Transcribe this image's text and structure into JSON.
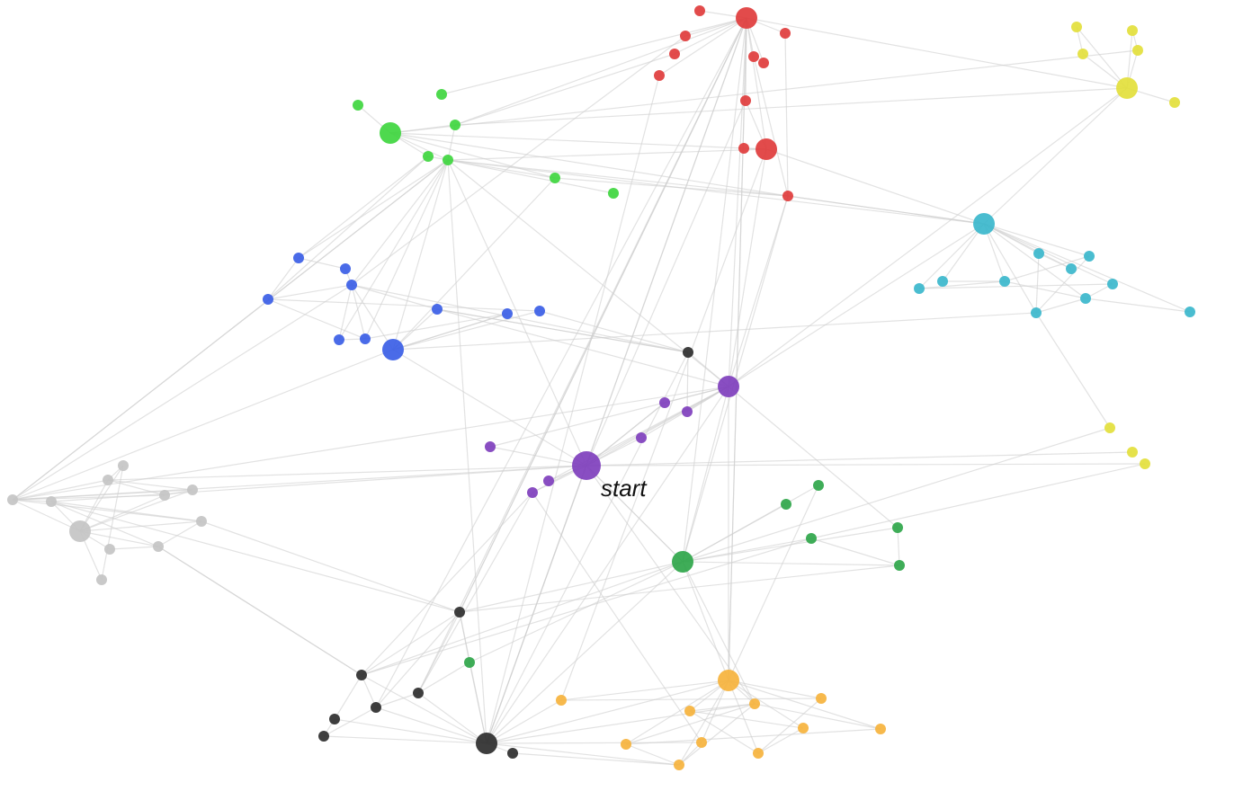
{
  "start_label": "start",
  "colors": {
    "red": "#e03c3c",
    "green": "#3fd63f",
    "blue": "#3b5ee6",
    "teal": "#3bb7cc",
    "yellow": "#e3df3c",
    "purple": "#7f3fbd",
    "darkgreen": "#2fa64a",
    "orange": "#f6b33d",
    "black": "#2e2e2e",
    "gray": "#c4c4c4",
    "edge": "#cfcfcf"
  },
  "nodes": [
    {
      "id": "r1",
      "group": "red",
      "size": "hub"
    },
    {
      "id": "r2",
      "group": "red",
      "size": "small"
    },
    {
      "id": "r3",
      "group": "red",
      "size": "small"
    },
    {
      "id": "r4",
      "group": "red",
      "size": "small"
    },
    {
      "id": "r5",
      "group": "red",
      "size": "small"
    },
    {
      "id": "r6",
      "group": "red",
      "size": "small"
    },
    {
      "id": "r7",
      "group": "red",
      "size": "small"
    },
    {
      "id": "r8",
      "group": "red",
      "size": "small"
    },
    {
      "id": "r9",
      "group": "red",
      "size": "small"
    },
    {
      "id": "r10",
      "group": "red",
      "size": "hub"
    },
    {
      "id": "r11",
      "group": "red",
      "size": "small"
    },
    {
      "id": "r12",
      "group": "red",
      "size": "small"
    },
    {
      "id": "y1",
      "group": "yellow",
      "size": "small"
    },
    {
      "id": "y2",
      "group": "yellow",
      "size": "small"
    },
    {
      "id": "y3",
      "group": "yellow",
      "size": "small"
    },
    {
      "id": "y4",
      "group": "yellow",
      "size": "small"
    },
    {
      "id": "y5",
      "group": "yellow",
      "size": "hub"
    },
    {
      "id": "y6",
      "group": "yellow",
      "size": "small"
    },
    {
      "id": "y7",
      "group": "yellow",
      "size": "small"
    },
    {
      "id": "y8",
      "group": "yellow",
      "size": "small"
    },
    {
      "id": "y9",
      "group": "yellow",
      "size": "small"
    },
    {
      "id": "g1",
      "group": "green",
      "size": "small"
    },
    {
      "id": "g2",
      "group": "green",
      "size": "small"
    },
    {
      "id": "g3",
      "group": "green",
      "size": "hub"
    },
    {
      "id": "g4",
      "group": "green",
      "size": "small"
    },
    {
      "id": "g5",
      "group": "green",
      "size": "small"
    },
    {
      "id": "g6",
      "group": "green",
      "size": "small"
    },
    {
      "id": "g7",
      "group": "green",
      "size": "small"
    },
    {
      "id": "g8",
      "group": "green",
      "size": "small"
    },
    {
      "id": "b1",
      "group": "blue",
      "size": "small"
    },
    {
      "id": "b2",
      "group": "blue",
      "size": "small"
    },
    {
      "id": "b3",
      "group": "blue",
      "size": "small"
    },
    {
      "id": "b4",
      "group": "blue",
      "size": "small"
    },
    {
      "id": "b5",
      "group": "blue",
      "size": "small"
    },
    {
      "id": "b6",
      "group": "blue",
      "size": "small"
    },
    {
      "id": "b7",
      "group": "blue",
      "size": "small"
    },
    {
      "id": "b8",
      "group": "blue",
      "size": "small"
    },
    {
      "id": "b9",
      "group": "blue",
      "size": "small"
    },
    {
      "id": "b10",
      "group": "blue",
      "size": "hub"
    },
    {
      "id": "t1",
      "group": "teal",
      "size": "hub"
    },
    {
      "id": "t2",
      "group": "teal",
      "size": "small"
    },
    {
      "id": "t3",
      "group": "teal",
      "size": "small"
    },
    {
      "id": "t4",
      "group": "teal",
      "size": "small"
    },
    {
      "id": "t5",
      "group": "teal",
      "size": "small"
    },
    {
      "id": "t6",
      "group": "teal",
      "size": "small"
    },
    {
      "id": "t7",
      "group": "teal",
      "size": "small"
    },
    {
      "id": "t8",
      "group": "teal",
      "size": "small"
    },
    {
      "id": "t9",
      "group": "teal",
      "size": "small"
    },
    {
      "id": "t10",
      "group": "teal",
      "size": "small"
    },
    {
      "id": "t11",
      "group": "teal",
      "size": "small"
    },
    {
      "id": "k1",
      "group": "black",
      "size": "small"
    },
    {
      "id": "k2",
      "group": "black",
      "size": "small"
    },
    {
      "id": "k3",
      "group": "black",
      "size": "small"
    },
    {
      "id": "k4",
      "group": "black",
      "size": "small"
    },
    {
      "id": "k5",
      "group": "black",
      "size": "small"
    },
    {
      "id": "k6",
      "group": "black",
      "size": "small"
    },
    {
      "id": "k7",
      "group": "black",
      "size": "small"
    },
    {
      "id": "k8",
      "group": "black",
      "size": "hub"
    },
    {
      "id": "k9",
      "group": "black",
      "size": "small"
    },
    {
      "id": "p1",
      "group": "purple",
      "size": "hub"
    },
    {
      "id": "p2",
      "group": "purple",
      "size": "small"
    },
    {
      "id": "p3",
      "group": "purple",
      "size": "small"
    },
    {
      "id": "p4",
      "group": "purple",
      "size": "small"
    },
    {
      "id": "p5",
      "group": "purple",
      "size": "small"
    },
    {
      "id": "p6",
      "group": "purple",
      "size": "start"
    },
    {
      "id": "p7",
      "group": "purple",
      "size": "small"
    },
    {
      "id": "p8",
      "group": "purple",
      "size": "small"
    },
    {
      "id": "dg1",
      "group": "darkgreen",
      "size": "small"
    },
    {
      "id": "dg2",
      "group": "darkgreen",
      "size": "small"
    },
    {
      "id": "dg3",
      "group": "darkgreen",
      "size": "small"
    },
    {
      "id": "dg4",
      "group": "darkgreen",
      "size": "small"
    },
    {
      "id": "dg5",
      "group": "darkgreen",
      "size": "small"
    },
    {
      "id": "dg6",
      "group": "darkgreen",
      "size": "hub"
    },
    {
      "id": "dg7",
      "group": "darkgreen",
      "size": "small"
    },
    {
      "id": "o1",
      "group": "orange",
      "size": "hub"
    },
    {
      "id": "o2",
      "group": "orange",
      "size": "small"
    },
    {
      "id": "o3",
      "group": "orange",
      "size": "small"
    },
    {
      "id": "o4",
      "group": "orange",
      "size": "small"
    },
    {
      "id": "o5",
      "group": "orange",
      "size": "small"
    },
    {
      "id": "o6",
      "group": "orange",
      "size": "small"
    },
    {
      "id": "o7",
      "group": "orange",
      "size": "small"
    },
    {
      "id": "o8",
      "group": "orange",
      "size": "small"
    },
    {
      "id": "o9",
      "group": "orange",
      "size": "small"
    },
    {
      "id": "o10",
      "group": "orange",
      "size": "small"
    },
    {
      "id": "o11",
      "group": "orange",
      "size": "small"
    },
    {
      "id": "s1",
      "group": "gray",
      "size": "small"
    },
    {
      "id": "s2",
      "group": "gray",
      "size": "small"
    },
    {
      "id": "s3",
      "group": "gray",
      "size": "small"
    },
    {
      "id": "s4",
      "group": "gray",
      "size": "small"
    },
    {
      "id": "s5",
      "group": "gray",
      "size": "small"
    },
    {
      "id": "s6",
      "group": "gray",
      "size": "small"
    },
    {
      "id": "s7",
      "group": "gray",
      "size": "hub"
    },
    {
      "id": "s8",
      "group": "gray",
      "size": "small"
    },
    {
      "id": "s9",
      "group": "gray",
      "size": "small"
    },
    {
      "id": "s10",
      "group": "gray",
      "size": "small"
    },
    {
      "id": "s11",
      "group": "gray",
      "size": "small"
    }
  ],
  "edges": [
    [
      "r1",
      "r2"
    ],
    [
      "r1",
      "r3"
    ],
    [
      "r1",
      "r4"
    ],
    [
      "r1",
      "r5"
    ],
    [
      "r1",
      "r6"
    ],
    [
      "r1",
      "r7"
    ],
    [
      "r1",
      "r8"
    ],
    [
      "r1",
      "r9"
    ],
    [
      "r1",
      "r10"
    ],
    [
      "r1",
      "g4"
    ],
    [
      "r1",
      "g2"
    ],
    [
      "r1",
      "y5"
    ],
    [
      "r1",
      "k8"
    ],
    [
      "r1",
      "k1"
    ],
    [
      "r1",
      "dg6"
    ],
    [
      "r1",
      "o1"
    ],
    [
      "r1",
      "p1"
    ],
    [
      "r10",
      "r11"
    ],
    [
      "r10",
      "r9"
    ],
    [
      "r10",
      "g3"
    ],
    [
      "r10",
      "g5"
    ],
    [
      "r10",
      "p1"
    ],
    [
      "r10",
      "t1"
    ],
    [
      "r10",
      "o2"
    ],
    [
      "r12",
      "t1"
    ],
    [
      "r12",
      "g5"
    ],
    [
      "r12",
      "p1"
    ],
    [
      "r12",
      "r7"
    ],
    [
      "r12",
      "g3"
    ],
    [
      "r12",
      "g6"
    ],
    [
      "r4",
      "g4"
    ],
    [
      "r5",
      "r12"
    ],
    [
      "r3",
      "b3"
    ],
    [
      "r6",
      "k8"
    ],
    [
      "r9",
      "p6"
    ],
    [
      "y5",
      "y1"
    ],
    [
      "y5",
      "y2"
    ],
    [
      "y5",
      "y3"
    ],
    [
      "y5",
      "y4"
    ],
    [
      "y5",
      "y6"
    ],
    [
      "y5",
      "t1"
    ],
    [
      "y5",
      "p1"
    ],
    [
      "y5",
      "g4"
    ],
    [
      "y1",
      "y3"
    ],
    [
      "y2",
      "y4"
    ],
    [
      "y4",
      "g3"
    ],
    [
      "t1",
      "t2"
    ],
    [
      "t1",
      "t3"
    ],
    [
      "t1",
      "t4"
    ],
    [
      "t1",
      "t5"
    ],
    [
      "t1",
      "t6"
    ],
    [
      "t1",
      "t7"
    ],
    [
      "t1",
      "t8"
    ],
    [
      "t1",
      "t9"
    ],
    [
      "t1",
      "t10"
    ],
    [
      "t1",
      "t11"
    ],
    [
      "t1",
      "g5"
    ],
    [
      "t1",
      "r12"
    ],
    [
      "t1",
      "p1"
    ],
    [
      "t3",
      "t6"
    ],
    [
      "t3",
      "t9"
    ],
    [
      "t4",
      "t8"
    ],
    [
      "t5",
      "t6"
    ],
    [
      "t2",
      "t7"
    ],
    [
      "t8",
      "t10"
    ],
    [
      "t6",
      "t10"
    ],
    [
      "t10",
      "t11"
    ],
    [
      "t9",
      "t10"
    ],
    [
      "t9",
      "y7"
    ],
    [
      "t9",
      "b10"
    ],
    [
      "t4",
      "t6"
    ],
    [
      "t2",
      "t9"
    ],
    [
      "g3",
      "g1"
    ],
    [
      "g3",
      "g4"
    ],
    [
      "g3",
      "g5"
    ],
    [
      "g3",
      "g6"
    ],
    [
      "g3",
      "g7"
    ],
    [
      "g4",
      "g5"
    ],
    [
      "g5",
      "g6"
    ],
    [
      "g5",
      "b1"
    ],
    [
      "g5",
      "b3"
    ],
    [
      "g5",
      "b7"
    ],
    [
      "g5",
      "b8"
    ],
    [
      "g5",
      "b10"
    ],
    [
      "g5",
      "s5"
    ],
    [
      "g5",
      "g7"
    ],
    [
      "g5",
      "p1"
    ],
    [
      "g5",
      "p6"
    ],
    [
      "g5",
      "k8"
    ],
    [
      "g7",
      "b1"
    ],
    [
      "g7",
      "b4"
    ],
    [
      "g6",
      "b10"
    ],
    [
      "g8",
      "g5"
    ],
    [
      "b1",
      "b2"
    ],
    [
      "b1",
      "b4"
    ],
    [
      "b2",
      "b3"
    ],
    [
      "b3",
      "b5"
    ],
    [
      "b3",
      "b7"
    ],
    [
      "b3",
      "b8"
    ],
    [
      "b3",
      "b10"
    ],
    [
      "b3",
      "k9"
    ],
    [
      "b4",
      "b8"
    ],
    [
      "b4",
      "b9"
    ],
    [
      "b5",
      "b10"
    ],
    [
      "b5",
      "k9"
    ],
    [
      "b5",
      "p1"
    ],
    [
      "b6",
      "b10"
    ],
    [
      "b6",
      "b8"
    ],
    [
      "b7",
      "b8"
    ],
    [
      "b10",
      "b9"
    ],
    [
      "b10",
      "p6"
    ],
    [
      "b10",
      "b6"
    ],
    [
      "b4",
      "b3"
    ],
    [
      "k9",
      "p1"
    ],
    [
      "k9",
      "b9"
    ],
    [
      "k9",
      "b5"
    ],
    [
      "p1",
      "p2"
    ],
    [
      "p1",
      "p3"
    ],
    [
      "p1",
      "p4"
    ],
    [
      "p1",
      "p5"
    ],
    [
      "p1",
      "p6"
    ],
    [
      "p1",
      "p7"
    ],
    [
      "p1",
      "p8"
    ],
    [
      "p1",
      "dg6"
    ],
    [
      "p1",
      "o1"
    ],
    [
      "p1",
      "k8"
    ],
    [
      "p1",
      "dg4"
    ],
    [
      "p1",
      "s5"
    ],
    [
      "p6",
      "p2"
    ],
    [
      "p6",
      "p4"
    ],
    [
      "p6",
      "p7"
    ],
    [
      "p6",
      "p8"
    ],
    [
      "p6",
      "p5"
    ],
    [
      "p6",
      "y8"
    ],
    [
      "p6",
      "y9"
    ],
    [
      "p6",
      "dg6"
    ],
    [
      "p6",
      "k8"
    ],
    [
      "p6",
      "o3"
    ],
    [
      "p6",
      "s5"
    ],
    [
      "p6",
      "s2"
    ],
    [
      "p8",
      "k2"
    ],
    [
      "p8",
      "k3"
    ],
    [
      "p8",
      "o9"
    ],
    [
      "p2",
      "p6"
    ],
    [
      "p3",
      "k9"
    ],
    [
      "dg6",
      "dg1"
    ],
    [
      "dg6",
      "dg2"
    ],
    [
      "dg6",
      "dg3"
    ],
    [
      "dg6",
      "dg4"
    ],
    [
      "dg6",
      "dg5"
    ],
    [
      "dg6",
      "dg7"
    ],
    [
      "dg6",
      "o3"
    ],
    [
      "dg6",
      "o1"
    ],
    [
      "dg6",
      "k1"
    ],
    [
      "dg6",
      "k2"
    ],
    [
      "dg6",
      "k8"
    ],
    [
      "dg6",
      "y7"
    ],
    [
      "dg6",
      "r12"
    ],
    [
      "dg6",
      "p6"
    ],
    [
      "dg4",
      "dg5"
    ],
    [
      "dg3",
      "dg5"
    ],
    [
      "dg3",
      "y9"
    ],
    [
      "dg7",
      "k1"
    ],
    [
      "dg7",
      "k3"
    ],
    [
      "dg5",
      "k1"
    ],
    [
      "dg1",
      "o1"
    ],
    [
      "dg3",
      "k2"
    ],
    [
      "o1",
      "o2"
    ],
    [
      "o1",
      "o3"
    ],
    [
      "o1",
      "o4"
    ],
    [
      "o1",
      "o5"
    ],
    [
      "o1",
      "o6"
    ],
    [
      "o1",
      "o7"
    ],
    [
      "o1",
      "o8"
    ],
    [
      "o1",
      "o9"
    ],
    [
      "o1",
      "o10"
    ],
    [
      "o1",
      "o11"
    ],
    [
      "o1",
      "k8"
    ],
    [
      "o1",
      "r1"
    ],
    [
      "o3",
      "o5"
    ],
    [
      "o3",
      "o7"
    ],
    [
      "o3",
      "o8"
    ],
    [
      "o3",
      "o10"
    ],
    [
      "o5",
      "o6"
    ],
    [
      "o5",
      "o11"
    ],
    [
      "o2",
      "o4"
    ],
    [
      "o7",
      "o8"
    ],
    [
      "o8",
      "o10"
    ],
    [
      "o9",
      "k8"
    ],
    [
      "o9",
      "o10"
    ],
    [
      "o11",
      "o6"
    ],
    [
      "o4",
      "o11"
    ],
    [
      "o2",
      "k8"
    ],
    [
      "o10",
      "k9_x"
    ],
    [
      "k8",
      "k1"
    ],
    [
      "k8",
      "k2"
    ],
    [
      "k8",
      "k3"
    ],
    [
      "k8",
      "k4"
    ],
    [
      "k8",
      "k5"
    ],
    [
      "k8",
      "k6"
    ],
    [
      "k8",
      "k7"
    ],
    [
      "k8",
      "k9"
    ],
    [
      "k8",
      "dg7"
    ],
    [
      "k8",
      "o10"
    ],
    [
      "k8",
      "o3"
    ],
    [
      "k8",
      "r1"
    ],
    [
      "k1",
      "k2"
    ],
    [
      "k1",
      "k3"
    ],
    [
      "k1",
      "k4"
    ],
    [
      "k2",
      "k4"
    ],
    [
      "k2",
      "k5"
    ],
    [
      "k3",
      "k4"
    ],
    [
      "k4",
      "k6"
    ],
    [
      "k5",
      "k6"
    ],
    [
      "k7",
      "o10"
    ],
    [
      "k2",
      "s10"
    ],
    [
      "k1",
      "r1"
    ],
    [
      "k4",
      "r1"
    ],
    [
      "k3",
      "r1"
    ],
    [
      "s7",
      "s1"
    ],
    [
      "s7",
      "s2"
    ],
    [
      "s7",
      "s3"
    ],
    [
      "s7",
      "s4"
    ],
    [
      "s7",
      "s5"
    ],
    [
      "s7",
      "s6"
    ],
    [
      "s7",
      "s8"
    ],
    [
      "s7",
      "s9"
    ],
    [
      "s7",
      "s10"
    ],
    [
      "s7",
      "s11"
    ],
    [
      "s2",
      "s3"
    ],
    [
      "s2",
      "s4"
    ],
    [
      "s2",
      "s5"
    ],
    [
      "s3",
      "s4"
    ],
    [
      "s3",
      "s5"
    ],
    [
      "s4",
      "s5"
    ],
    [
      "s5",
      "s6"
    ],
    [
      "s5",
      "s8"
    ],
    [
      "s6",
      "s8"
    ],
    [
      "s8",
      "s10"
    ],
    [
      "s1",
      "s2"
    ],
    [
      "s1",
      "s11"
    ],
    [
      "s9",
      "s10"
    ],
    [
      "s6",
      "s10"
    ],
    [
      "s5",
      "b3"
    ],
    [
      "s5",
      "b10"
    ],
    [
      "s6",
      "k1"
    ],
    [
      "s6",
      "p6"
    ],
    [
      "s8",
      "k1"
    ],
    [
      "s5",
      "g5"
    ],
    [
      "s10",
      "k2"
    ]
  ]
}
